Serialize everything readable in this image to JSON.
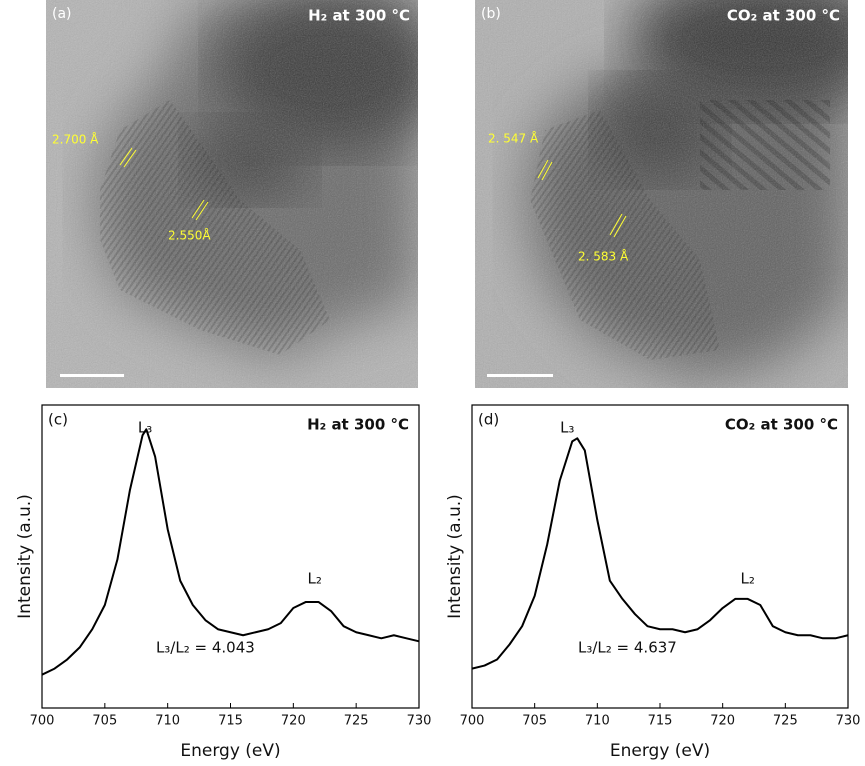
{
  "images": [
    {
      "label": "(a)",
      "title": "H₂ at 300 °C",
      "annotations": [
        "2.700 Å",
        "2.550Å"
      ]
    },
    {
      "label": "(b)",
      "title": "CO₂ at 300 °C",
      "annotations": [
        "2. 547 Å",
        "2. 583 Å"
      ]
    }
  ],
  "chart_data": [
    {
      "type": "line",
      "panel_label": "(c)",
      "title": "H₂ at 300 °C",
      "x_label": "Energy (eV)",
      "y_label": "Intensity (a.u.)",
      "x": [
        700,
        701,
        702,
        703,
        704,
        705,
        706,
        707,
        708,
        708.3,
        709,
        710,
        711,
        712,
        713,
        714,
        715,
        716,
        717,
        718,
        719,
        720,
        721,
        722,
        723,
        724,
        725,
        726,
        727,
        728,
        729,
        730
      ],
      "values": [
        11,
        13,
        16,
        20,
        26,
        34,
        49,
        72,
        90,
        92,
        83,
        59,
        42,
        34,
        29,
        26,
        25,
        24,
        25,
        26,
        28,
        33,
        35,
        35,
        32,
        27,
        25,
        24,
        23,
        24,
        23,
        22
      ],
      "color": "#000000",
      "xlim": [
        700,
        730
      ],
      "xticks": [
        700,
        705,
        710,
        715,
        720,
        725,
        730
      ],
      "ylim": [
        0,
        100
      ],
      "annotations": [
        "L₃",
        "L₂",
        "L₃/L₂ = 4.043"
      ]
    },
    {
      "type": "line",
      "panel_label": "(d)",
      "title": "CO₂ at 300 °C",
      "x_label": "Energy (eV)",
      "y_label": "Intensity (a.u.)",
      "x": [
        700,
        701,
        702,
        703,
        704,
        705,
        706,
        707,
        708,
        708.4,
        709,
        710,
        711,
        712,
        713,
        714,
        715,
        716,
        717,
        718,
        719,
        720,
        721,
        722,
        723,
        724,
        725,
        726,
        727,
        728,
        729,
        730
      ],
      "values": [
        13,
        14,
        16,
        21,
        27,
        37,
        54,
        75,
        88,
        89,
        85,
        62,
        42,
        36,
        31,
        27,
        26,
        26,
        25,
        26,
        29,
        33,
        36,
        36,
        34,
        27,
        25,
        24,
        24,
        23,
        23,
        24
      ],
      "color": "#000000",
      "xlim": [
        700,
        730
      ],
      "xticks": [
        700,
        705,
        710,
        715,
        720,
        725,
        730
      ],
      "ylim": [
        0,
        100
      ],
      "annotations": [
        "L₃",
        "L₂",
        "L₃/L₂ = 4.637"
      ]
    }
  ]
}
